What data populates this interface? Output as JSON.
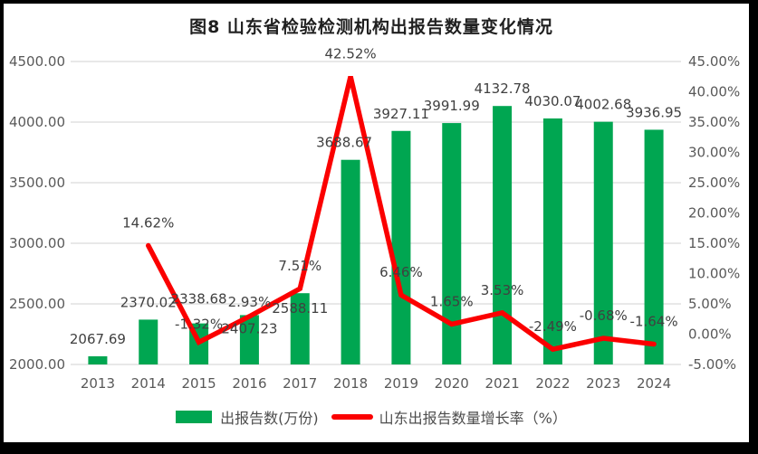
{
  "chart_data": {
    "type": "combo-bar-line",
    "title": "图8  山东省检验检测机构出报告数量变化情况",
    "categories": [
      "2013",
      "2014",
      "2015",
      "2016",
      "2017",
      "2018",
      "2019",
      "2020",
      "2021",
      "2022",
      "2023",
      "2024"
    ],
    "series": [
      {
        "name": "出报告数(万份)",
        "type": "bar",
        "axis": "left",
        "color": "#00A651",
        "values": [
          2067.69,
          2370.02,
          2338.68,
          2407.23,
          2588.11,
          3688.67,
          3927.11,
          3991.99,
          4132.78,
          4030.07,
          4002.68,
          3936.95
        ],
        "labels": [
          "2067.69",
          "2370.02",
          "2338.68",
          "2407.23",
          "2588.11",
          "3688.67",
          "3927.11",
          "3991.99",
          "4132.78",
          "4030.07",
          "4002.68",
          "3936.95"
        ]
      },
      {
        "name": "山东出报告数量增长率（%）",
        "type": "line",
        "axis": "right",
        "color": "#FB0000",
        "values": [
          null,
          14.62,
          -1.32,
          2.93,
          7.51,
          42.52,
          6.46,
          1.65,
          3.53,
          -2.49,
          -0.68,
          -1.64
        ],
        "labels": [
          "",
          "14.62%",
          "-1.32%",
          "2.93%",
          "7.51%",
          "42.52%",
          "6.46%",
          "1.65%",
          "3.53%",
          "-2.49%",
          "-0.68%",
          "-1.64%"
        ]
      }
    ],
    "left_axis": {
      "min": 2000,
      "max": 4500,
      "step": 500,
      "ticks": [
        "2000.00",
        "2500.00",
        "3000.00",
        "3500.00",
        "4000.00",
        "4500.00"
      ]
    },
    "right_axis": {
      "min": -5,
      "max": 45,
      "step": 5,
      "ticks": [
        "-5.00%",
        "0.00%",
        "5.00%",
        "10.00%",
        "15.00%",
        "20.00%",
        "25.00%",
        "30.00%",
        "35.00%",
        "40.00%",
        "45.00%"
      ]
    },
    "grid": true,
    "legend_position": "bottom",
    "colors": {
      "grid": "#D9D9D9",
      "axis_text": "#595959",
      "label_text": "#404040",
      "frame": "#000000"
    }
  }
}
